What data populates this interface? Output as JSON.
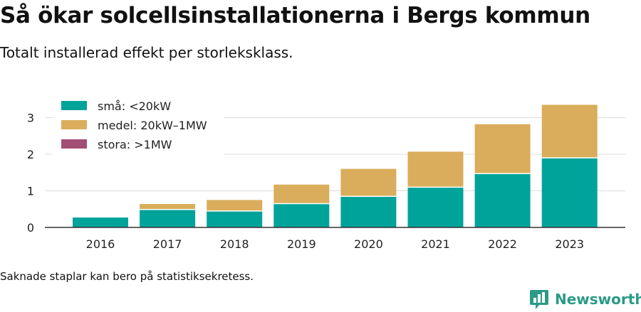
{
  "title": "Så ökar solcellsinstallationerna i Bergs kommun",
  "subtitle": "Totalt installerad effekt per storleksklass.",
  "footnote": "Saknade staplar kan bero på statistiksekretess.",
  "logo": {
    "text": "Newsworthy",
    "icon": "bar-chart-speech-bubble-icon",
    "color": "#2b9a86"
  },
  "chart_data": {
    "type": "bar",
    "stacked": true,
    "categories": [
      "2016",
      "2017",
      "2018",
      "2019",
      "2020",
      "2021",
      "2022",
      "2023"
    ],
    "series": [
      {
        "name": "små: <20kW",
        "color": "#00a39a",
        "values": [
          0.27,
          0.49,
          0.45,
          0.65,
          0.85,
          1.1,
          1.47,
          1.9
        ]
      },
      {
        "name": "medel: 20kW–1MW",
        "color": "#d9ad5b",
        "values": [
          0,
          0.15,
          0.3,
          0.52,
          0.75,
          0.97,
          1.35,
          1.45
        ]
      },
      {
        "name": "stora: >1MW",
        "color": "#a34e75",
        "values": [
          0,
          0,
          0,
          0,
          0,
          0,
          0,
          0
        ]
      }
    ],
    "yticks": [
      0,
      1,
      2,
      3
    ],
    "ylim": [
      0,
      3.5
    ],
    "grid": true,
    "legend": "top-left"
  }
}
